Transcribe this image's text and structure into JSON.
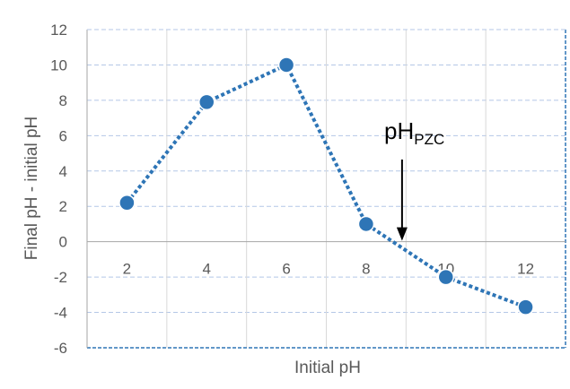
{
  "chart_data": {
    "type": "line",
    "xlabel": "Initial pH",
    "ylabel": "Final pH - initial pH",
    "x": [
      2,
      4,
      6,
      8,
      10,
      12
    ],
    "series": [
      {
        "values": [
          2.2,
          7.9,
          10.0,
          1.0,
          -2.0,
          -3.7
        ]
      }
    ],
    "xlim": [
      1,
      13
    ],
    "ylim": [
      -6,
      12
    ],
    "x_ticks": [
      "2",
      "4",
      "6",
      "8",
      "10",
      "12"
    ],
    "y_ticks": [
      "-6",
      "-4",
      "-2",
      "0",
      "2",
      "4",
      "6",
      "8",
      "10",
      "12"
    ],
    "grid": true,
    "annotation": {
      "text": "pH",
      "subscript": "PZC",
      "arrow_x": 8.9,
      "arrow_y": 0
    },
    "colors": {
      "series": "#2E75B6",
      "line": "#2E75B6",
      "grid": "#B4C7E7",
      "axis": "#A6A6A6",
      "text": "#595959"
    }
  }
}
